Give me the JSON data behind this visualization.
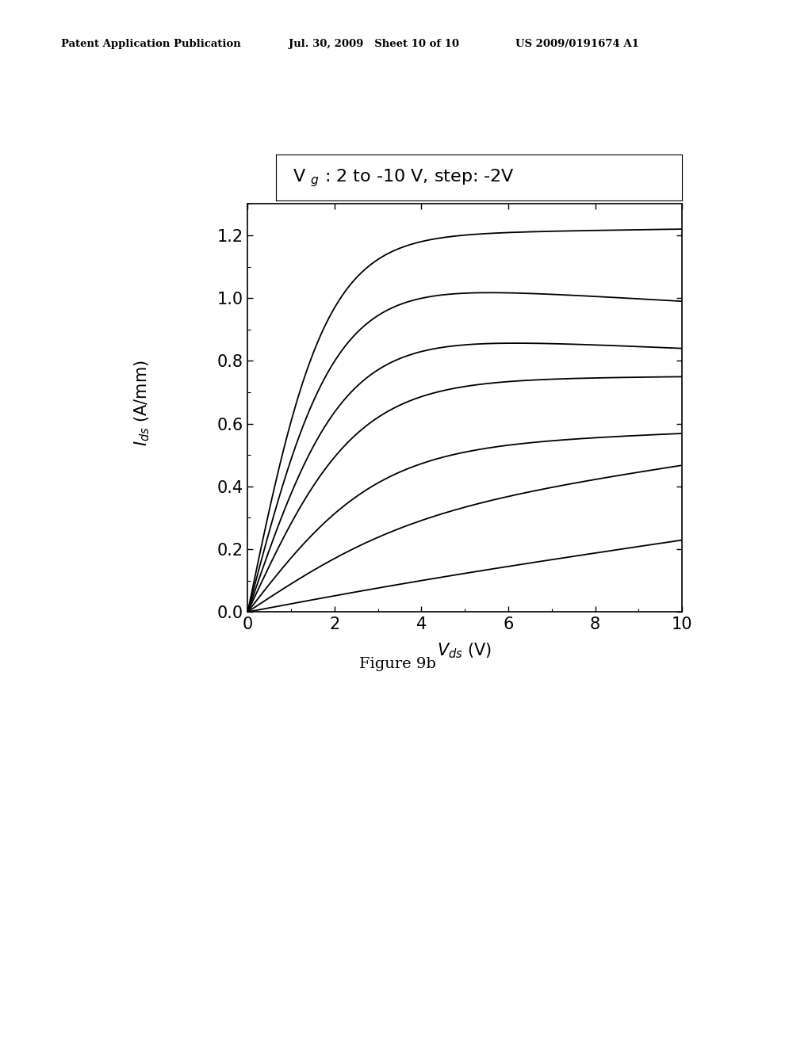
{
  "figure_caption": "Figure 9b",
  "header_left": "Patent Application Publication",
  "header_middle": "Jul. 30, 2009   Sheet 10 of 10",
  "header_right": "US 2009/0191674 A1",
  "xlim": [
    0,
    10
  ],
  "ylim": [
    0.0,
    1.3
  ],
  "xticks": [
    0,
    2,
    4,
    6,
    8,
    10
  ],
  "yticks": [
    0.0,
    0.2,
    0.4,
    0.6,
    0.8,
    1.0,
    1.2
  ],
  "curve_params": [
    {
      "isat": 1.2,
      "vknee": 1.8,
      "slope": 0.002
    },
    {
      "isat": 1.07,
      "vknee": 2.0,
      "slope": -0.008
    },
    {
      "isat": 0.9,
      "vknee": 2.2,
      "slope": -0.006
    },
    {
      "isat": 0.74,
      "vknee": 2.5,
      "slope": 0.001
    },
    {
      "isat": 0.52,
      "vknee": 3.0,
      "slope": 0.005
    },
    {
      "isat": 0.27,
      "vknee": 3.8,
      "slope": 0.02
    },
    {
      "isat": 0.03,
      "vknee": 5.0,
      "slope": 0.02
    }
  ],
  "line_color": "#000000",
  "background_color": "#ffffff",
  "plot_background": "#ffffff"
}
